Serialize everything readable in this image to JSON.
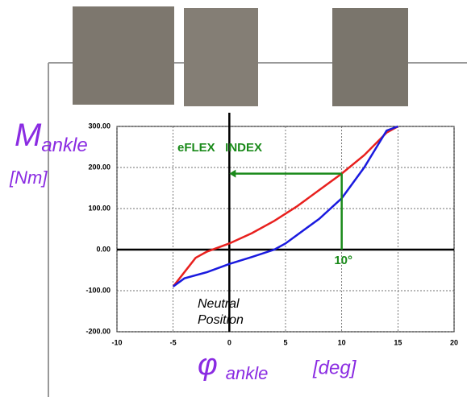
{
  "chart_data": {
    "type": "line",
    "y_label": {
      "symbol": "M",
      "subscript": "ankle",
      "unit": "[Nm]"
    },
    "x_label": {
      "symbol": "φ",
      "subscript": "ankle",
      "unit": "[deg]"
    },
    "index_label": "eFLEX   INDEX",
    "index_marker": {
      "x": 10,
      "y": 185,
      "label": "10°"
    },
    "neutral_label": [
      "Neutral",
      "Position"
    ],
    "xlim": [
      -10,
      20
    ],
    "xticks": [
      -10,
      -5,
      0,
      5,
      10,
      15,
      20
    ],
    "ylim": [
      -200,
      300
    ],
    "yticks": [
      {
        "value": -200,
        "label": "-200.00"
      },
      {
        "value": -100,
        "label": "-100.00"
      },
      {
        "value": 0,
        "label": "0.00"
      },
      {
        "value": 100,
        "label": "100.00"
      },
      {
        "value": 200,
        "label": "200.00"
      },
      {
        "value": 300,
        "label": "300.00"
      }
    ],
    "grid": true,
    "series": [
      {
        "color": "#e8201e",
        "x": [
          -5,
          -4,
          -3,
          -2,
          0,
          2,
          4,
          6,
          8,
          10,
          12,
          14,
          15
        ],
        "values": [
          -90,
          -55,
          -20,
          -5,
          15,
          40,
          70,
          105,
          145,
          185,
          230,
          285,
          300
        ]
      },
      {
        "color": "#1a1adf",
        "x": [
          -5,
          -4,
          -2,
          0,
          2,
          4,
          5,
          6,
          8,
          10,
          12,
          14,
          15
        ],
        "values": [
          -90,
          -70,
          -55,
          -35,
          -18,
          0,
          15,
          35,
          75,
          125,
          200,
          290,
          300
        ]
      }
    ]
  }
}
